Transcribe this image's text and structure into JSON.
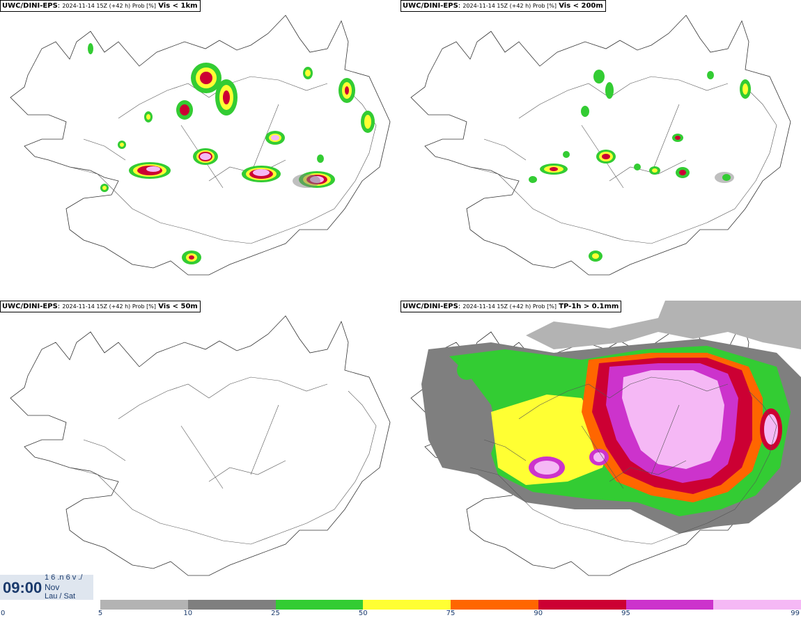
{
  "panels": [
    {
      "source": "UWC/DINI-EPS",
      "meta": "2024-11-14 15Z (+42 h) Prob [%]",
      "field": "Vis < 1km"
    },
    {
      "source": "UWC/DINI-EPS",
      "meta": "2024-11-14 15Z (+42 h) Prob [%]",
      "field": "Vis < 200m"
    },
    {
      "source": "UWC/DINI-EPS",
      "meta": "2024-11-14 15Z (+42 h) Prob [%]",
      "field": "Vis < 50m"
    },
    {
      "source": "UWC/DINI-EPS",
      "meta": "2024-11-14 15Z (+42 h) Prob [%]",
      "field": "TP-1h > 0.1mm"
    }
  ],
  "timebox": {
    "time": "09:00",
    "line1": "1 6 .n 6 v ./",
    "line2": "Nov",
    "line3": "Lau / Sat"
  },
  "colorbar": {
    "colors": [
      "#b3b3b3",
      "#7f7f7f",
      "#33cc33",
      "#ffff33",
      "#ff6600",
      "#cc0033",
      "#cc33cc",
      "#f5b8f5"
    ],
    "ticks": [
      "0",
      "5",
      "10",
      "25",
      "50",
      "75",
      "90",
      "95",
      "99"
    ]
  }
}
